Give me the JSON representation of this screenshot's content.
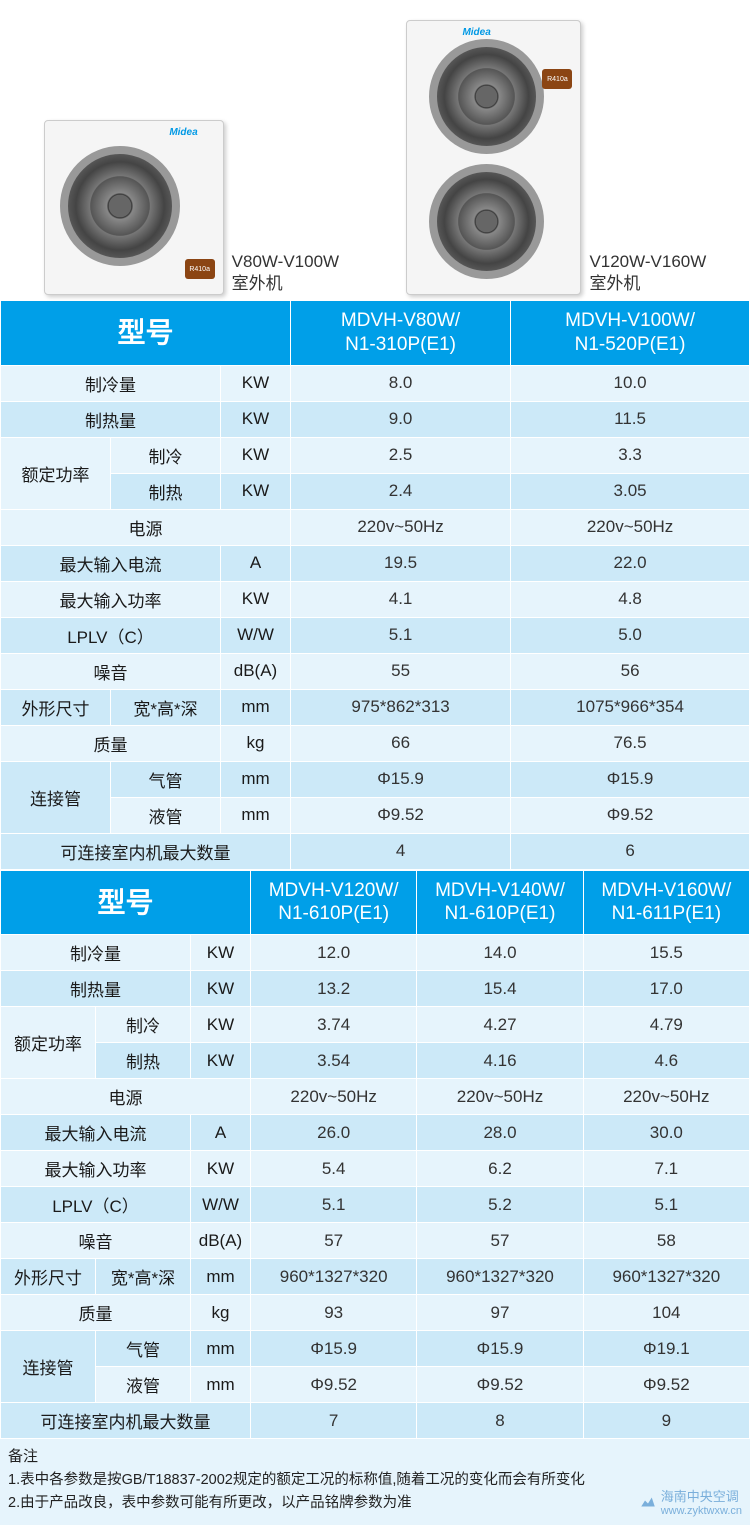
{
  "images": {
    "small": {
      "caption_line1": "V80W-V100W",
      "caption_line2": "室外机",
      "badge": "R410a",
      "logo": "Midea"
    },
    "large": {
      "caption_line1": "V120W-V160W",
      "caption_line2": "室外机",
      "badge": "R410a",
      "logo": "Midea"
    }
  },
  "table1": {
    "header": {
      "label": "型号",
      "col1_l1": "MDVH-V80W/",
      "col1_l2": "N1-310P(E1)",
      "col2_l1": "MDVH-V100W/",
      "col2_l2": "N1-520P(E1)"
    },
    "rows": [
      {
        "label": "制冷量",
        "sub": "",
        "unit": "KW",
        "v1": "8.0",
        "v2": "10.0",
        "shade": "light",
        "span": 2
      },
      {
        "label": "制热量",
        "sub": "",
        "unit": "KW",
        "v1": "9.0",
        "v2": "11.5",
        "shade": "dark",
        "span": 2
      },
      {
        "label": "额定功率",
        "sub": "制冷",
        "unit": "KW",
        "v1": "2.5",
        "v2": "3.3",
        "shade": "light",
        "rowspan": 2
      },
      {
        "label": "",
        "sub": "制热",
        "unit": "KW",
        "v1": "2.4",
        "v2": "3.05",
        "shade": "dark"
      },
      {
        "label": "电源",
        "sub": "",
        "unit": "",
        "v1": "220v~50Hz",
        "v2": "220v~50Hz",
        "shade": "light",
        "span": 3
      },
      {
        "label": "最大输入电流",
        "sub": "",
        "unit": "A",
        "v1": "19.5",
        "v2": "22.0",
        "shade": "dark",
        "span": 2
      },
      {
        "label": "最大输入功率",
        "sub": "",
        "unit": "KW",
        "v1": "4.1",
        "v2": "4.8",
        "shade": "light",
        "span": 2
      },
      {
        "label": "LPLV（C）",
        "sub": "",
        "unit": "W/W",
        "v1": "5.1",
        "v2": "5.0",
        "shade": "dark",
        "span": 2
      },
      {
        "label": "噪音",
        "sub": "",
        "unit": "dB(A)",
        "v1": "55",
        "v2": "56",
        "shade": "light",
        "span": 2
      },
      {
        "label": "外形尺寸",
        "sub": "宽*高*深",
        "unit": "mm",
        "v1": "975*862*313",
        "v2": "1075*966*354",
        "shade": "dark"
      },
      {
        "label": "质量",
        "sub": "",
        "unit": "kg",
        "v1": "66",
        "v2": "76.5",
        "shade": "light",
        "span": 2
      },
      {
        "label": "连接管",
        "sub": "气管",
        "unit": "mm",
        "v1": "Φ15.9",
        "v2": "Φ15.9",
        "shade": "dark",
        "rowspan": 2
      },
      {
        "label": "",
        "sub": "液管",
        "unit": "mm",
        "v1": "Φ9.52",
        "v2": "Φ9.52",
        "shade": "light"
      },
      {
        "label": "可连接室内机最大数量",
        "sub": "",
        "unit": "",
        "v1": "4",
        "v2": "6",
        "shade": "dark",
        "span": 3
      }
    ]
  },
  "table2": {
    "header": {
      "label": "型号",
      "col1_l1": "MDVH-V120W/",
      "col1_l2": "N1-610P(E1)",
      "col2_l1": "MDVH-V140W/",
      "col2_l2": "N1-610P(E1)",
      "col3_l1": "MDVH-V160W/",
      "col3_l2": "N1-611P(E1)"
    },
    "rows": [
      {
        "label": "制冷量",
        "sub": "",
        "unit": "KW",
        "v1": "12.0",
        "v2": "14.0",
        "v3": "15.5",
        "shade": "light",
        "span": 2
      },
      {
        "label": "制热量",
        "sub": "",
        "unit": "KW",
        "v1": "13.2",
        "v2": "15.4",
        "v3": "17.0",
        "shade": "dark",
        "span": 2
      },
      {
        "label": "额定功率",
        "sub": "制冷",
        "unit": "KW",
        "v1": "3.74",
        "v2": "4.27",
        "v3": "4.79",
        "shade": "light",
        "rowspan": 2
      },
      {
        "label": "",
        "sub": "制热",
        "unit": "KW",
        "v1": "3.54",
        "v2": "4.16",
        "v3": "4.6",
        "shade": "dark"
      },
      {
        "label": "电源",
        "sub": "",
        "unit": "",
        "v1": "220v~50Hz",
        "v2": "220v~50Hz",
        "v3": "220v~50Hz",
        "shade": "light",
        "span": 3
      },
      {
        "label": "最大输入电流",
        "sub": "",
        "unit": "A",
        "v1": "26.0",
        "v2": "28.0",
        "v3": "30.0",
        "shade": "dark",
        "span": 2
      },
      {
        "label": "最大输入功率",
        "sub": "",
        "unit": "KW",
        "v1": "5.4",
        "v2": "6.2",
        "v3": "7.1",
        "shade": "light",
        "span": 2
      },
      {
        "label": "LPLV（C）",
        "sub": "",
        "unit": "W/W",
        "v1": "5.1",
        "v2": "5.2",
        "v3": "5.1",
        "shade": "dark",
        "span": 2
      },
      {
        "label": "噪音",
        "sub": "",
        "unit": "dB(A)",
        "v1": "57",
        "v2": "57",
        "v3": "58",
        "shade": "light",
        "span": 2
      },
      {
        "label": "外形尺寸",
        "sub": "宽*高*深",
        "unit": "mm",
        "v1": "960*1327*320",
        "v2": "960*1327*320",
        "v3": "960*1327*320",
        "shade": "dark"
      },
      {
        "label": "质量",
        "sub": "",
        "unit": "kg",
        "v1": "93",
        "v2": "97",
        "v3": "104",
        "shade": "light",
        "span": 2
      },
      {
        "label": "连接管",
        "sub": "气管",
        "unit": "mm",
        "v1": "Φ15.9",
        "v2": "Φ15.9",
        "v3": "Φ19.1",
        "shade": "dark",
        "rowspan": 2
      },
      {
        "label": "",
        "sub": "液管",
        "unit": "mm",
        "v1": "Φ9.52",
        "v2": "Φ9.52",
        "v3": "Φ9.52",
        "shade": "light"
      },
      {
        "label": "可连接室内机最大数量",
        "sub": "",
        "unit": "",
        "v1": "7",
        "v2": "8",
        "v3": "9",
        "shade": "dark",
        "span": 3
      }
    ]
  },
  "notes": {
    "title": "备注",
    "line1": "1.表中各参数是按GB/T18837-2002规定的额定工况的标称值,随着工况的变化而会有所变化",
    "line2": "2.由于产品改良，表中参数可能有所更改，以产品铭牌参数为准"
  },
  "watermark": {
    "text1": "海南中央空调",
    "text2": "www.zyktwxw.cn"
  },
  "colors": {
    "header_bg": "#009fe8",
    "row_light": "#e6f4fc",
    "row_dark": "#cce9f8"
  }
}
